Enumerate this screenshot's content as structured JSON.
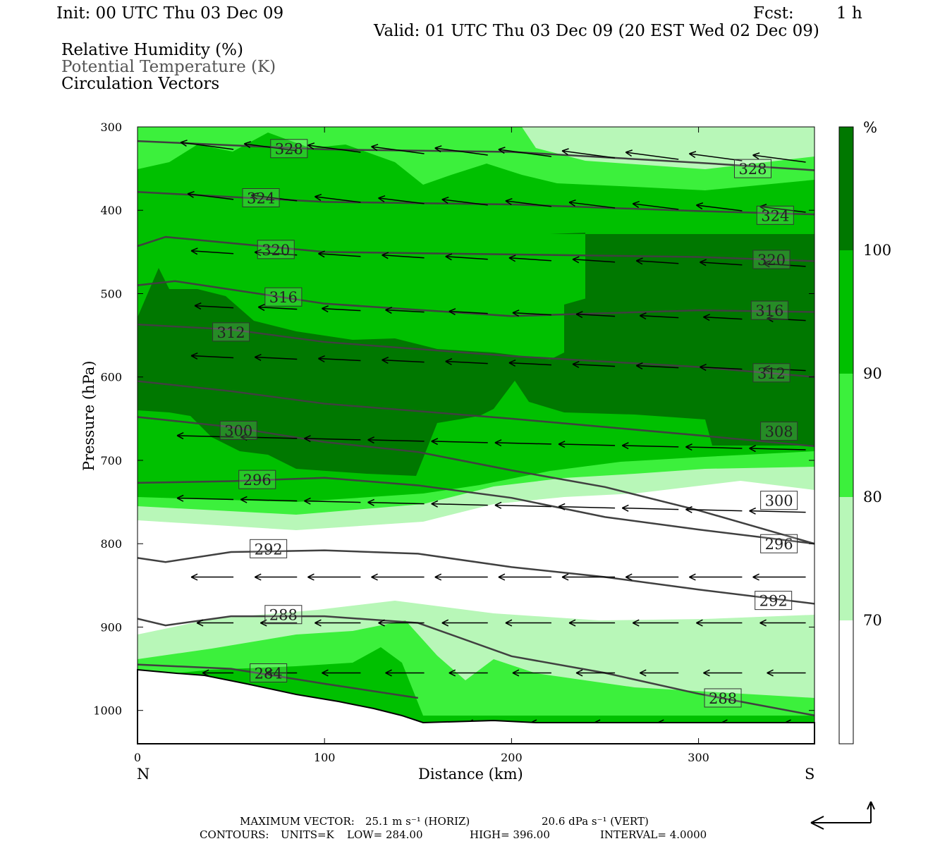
{
  "header": {
    "init": "Init: 00 UTC Thu 03 Dec 09",
    "fcst_label": "Fcst:",
    "fcst_value": "1 h",
    "valid": "Valid: 01 UTC Thu 03 Dec 09 (20 EST Wed 02 Dec 09)"
  },
  "fields": {
    "rh": "Relative Humidity (%)",
    "theta": "Potential Temperature (K)",
    "vectors": "Circulation Vectors"
  },
  "footer": {
    "max_vector_label": "MAXIMUM VECTOR:",
    "max_vector_horiz": "25.1 m s⁻¹ (HORIZ)",
    "max_vector_vert": "20.6 dPa s⁻¹ (VERT)",
    "contours_label": "CONTOURS:",
    "units": "UNITS=K",
    "low": "LOW=  284.00",
    "high": "HIGH=  396.00",
    "interval": "INTERVAL=   4.0000"
  },
  "colors": {
    "rh_70_80": "#b8f7b8",
    "rh_80_90": "#3cf03c",
    "rh_90_100": "#00c000",
    "rh_100": "#007800",
    "contour": "#404040"
  },
  "chart_data": {
    "type": "cross-section",
    "xlabel": "Distance (km)",
    "ylabel": "Pressure (hPa)",
    "xlim": [
      0,
      362
    ],
    "ylim": [
      1040,
      300
    ],
    "x_ticks": [
      0,
      100,
      200,
      300
    ],
    "y_ticks": [
      300,
      400,
      500,
      600,
      700,
      800,
      900,
      1000
    ],
    "x_end_labels": {
      "left": "N",
      "right": "S"
    },
    "colorbar": {
      "unit": "%",
      "levels": [
        "100",
        "90",
        "80",
        "70"
      ],
      "bins": [
        {
          "range": ">100",
          "color": "#007800"
        },
        {
          "range": "90-100",
          "color": "#00c000"
        },
        {
          "range": "80-90",
          "color": "#3cf03c"
        },
        {
          "range": "70-80",
          "color": "#b8f7b8"
        },
        {
          "range": "<70",
          "color": "#ffffff"
        }
      ]
    },
    "theta_contours": [
      {
        "value": 328,
        "x": [
          0,
          100,
          200,
          300,
          362
        ],
        "p": [
          317,
          327,
          330,
          343,
          352
        ]
      },
      {
        "value": 324,
        "x": [
          0,
          100,
          200,
          300,
          362
        ],
        "p": [
          378,
          390,
          393,
          401,
          405
        ]
      },
      {
        "value": 320,
        "x": [
          0,
          15,
          100,
          200,
          300,
          362
        ],
        "p": [
          443,
          432,
          450,
          453,
          456,
          461
        ]
      },
      {
        "value": 316,
        "x": [
          0,
          20,
          100,
          200,
          300,
          362
        ],
        "p": [
          490,
          485,
          512,
          527,
          520,
          522
        ]
      },
      {
        "value": 312,
        "x": [
          0,
          50,
          100,
          200,
          300,
          362
        ],
        "p": [
          537,
          543,
          558,
          575,
          588,
          600
        ]
      },
      {
        "value": 308,
        "x": [
          0,
          50,
          100,
          200,
          300,
          362
        ],
        "p": [
          605,
          617,
          632,
          650,
          670,
          683
        ]
      },
      {
        "value": 300,
        "x": [
          0,
          50,
          100,
          150,
          200,
          250,
          300,
          362
        ],
        "p": [
          648,
          660,
          678,
          690,
          712,
          732,
          760,
          800
        ]
      },
      {
        "value": 296,
        "x": [
          0,
          50,
          100,
          150,
          200,
          250,
          300,
          362
        ],
        "p": [
          727,
          725,
          721,
          730,
          745,
          768,
          783,
          800
        ]
      },
      {
        "value": 292,
        "x": [
          0,
          15,
          50,
          100,
          150,
          200,
          250,
          300,
          362
        ],
        "p": [
          817,
          822,
          810,
          808,
          812,
          828,
          840,
          855,
          872
        ]
      },
      {
        "value": 288,
        "x": [
          0,
          15,
          50,
          100,
          150,
          200,
          250,
          300,
          362
        ],
        "p": [
          890,
          898,
          887,
          887,
          895,
          935,
          955,
          980,
          1006
        ]
      },
      {
        "value": 284,
        "x": [
          0,
          50,
          100,
          150
        ],
        "p": [
          945,
          950,
          968,
          985
        ]
      }
    ],
    "theta_labels": [
      {
        "text": "328",
        "x": 81,
        "p": 326
      },
      {
        "text": "328",
        "x": 329,
        "p": 350
      },
      {
        "text": "324",
        "x": 66,
        "p": 385
      },
      {
        "text": "324",
        "x": 341,
        "p": 406
      },
      {
        "text": "320",
        "x": 74,
        "p": 447
      },
      {
        "text": "320",
        "x": 339,
        "p": 459
      },
      {
        "text": "316",
        "x": 78,
        "p": 504
      },
      {
        "text": "316",
        "x": 338,
        "p": 520
      },
      {
        "text": "312",
        "x": 50,
        "p": 546
      },
      {
        "text": "312",
        "x": 339,
        "p": 595
      },
      {
        "text": "308",
        "x": 343,
        "p": 665
      },
      {
        "text": "300",
        "x": 54,
        "p": 664
      },
      {
        "text": "300",
        "x": 343,
        "p": 748
      },
      {
        "text": "296",
        "x": 64,
        "p": 723
      },
      {
        "text": "296",
        "x": 343,
        "p": 800
      },
      {
        "text": "292",
        "x": 70,
        "p": 806
      },
      {
        "text": "292",
        "x": 340,
        "p": 868
      },
      {
        "text": "288",
        "x": 78,
        "p": 885
      },
      {
        "text": "288",
        "x": 313,
        "p": 985
      },
      {
        "text": "284",
        "x": 70,
        "p": 955
      }
    ]
  }
}
